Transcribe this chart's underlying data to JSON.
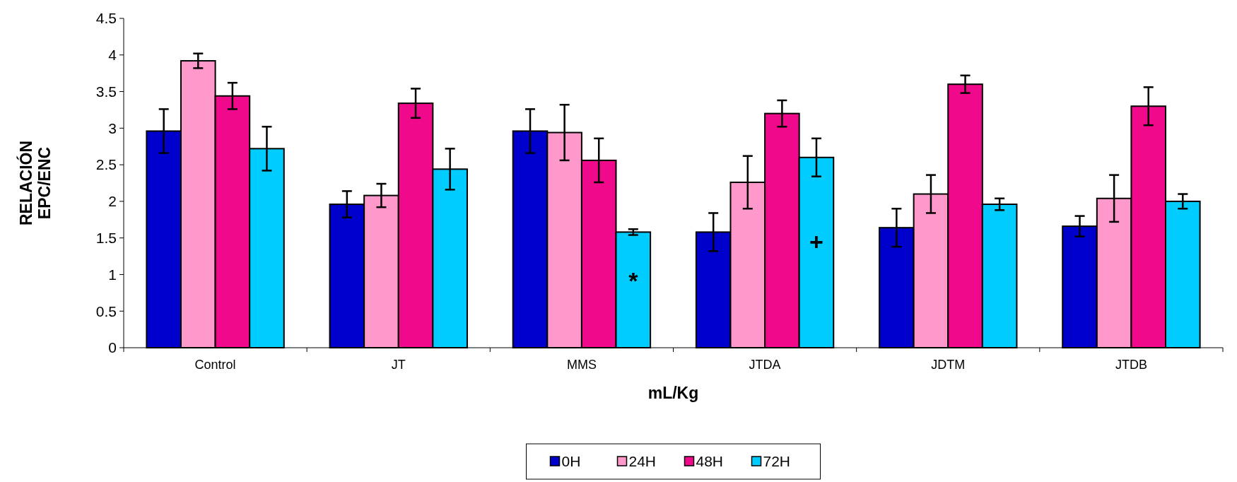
{
  "chart_data": {
    "type": "bar",
    "xlabel": "mL/Kg",
    "ylabel": "RELACIÓN\nEPC/ENC",
    "categories": [
      "Control",
      "JT",
      "MMS",
      "JTDA",
      "JDTM",
      "JTDB"
    ],
    "series": [
      {
        "name": "0H",
        "color": "#0000cc",
        "values": [
          2.96,
          1.96,
          2.96,
          1.58,
          1.64,
          1.66
        ],
        "errors": [
          0.3,
          0.18,
          0.3,
          0.26,
          0.26,
          0.14
        ]
      },
      {
        "name": "24H",
        "color": "#ff99cc",
        "values": [
          3.92,
          2.08,
          2.94,
          2.26,
          2.1,
          2.04
        ],
        "errors": [
          0.1,
          0.16,
          0.38,
          0.36,
          0.26,
          0.32
        ]
      },
      {
        "name": "48H",
        "color": "#f0098a",
        "values": [
          3.44,
          3.34,
          2.56,
          3.2,
          3.6,
          3.3
        ],
        "errors": [
          0.18,
          0.2,
          0.3,
          0.18,
          0.12,
          0.26
        ]
      },
      {
        "name": "72H",
        "color": "#00ccff",
        "values": [
          2.72,
          2.44,
          1.58,
          2.6,
          1.96,
          2.0
        ],
        "errors": [
          0.3,
          0.28,
          0.04,
          0.26,
          0.08,
          0.1
        ]
      }
    ],
    "annotations": [
      {
        "text": "*",
        "x": "MMS",
        "y": 0.92
      },
      {
        "text": "+",
        "x": "JTDA",
        "y": 1.45
      }
    ],
    "ylim": [
      0,
      4.5
    ],
    "yticks": [
      0,
      0.5,
      1,
      1.5,
      2,
      2.5,
      3,
      3.5,
      4,
      4.5
    ],
    "legend": "bottom"
  }
}
